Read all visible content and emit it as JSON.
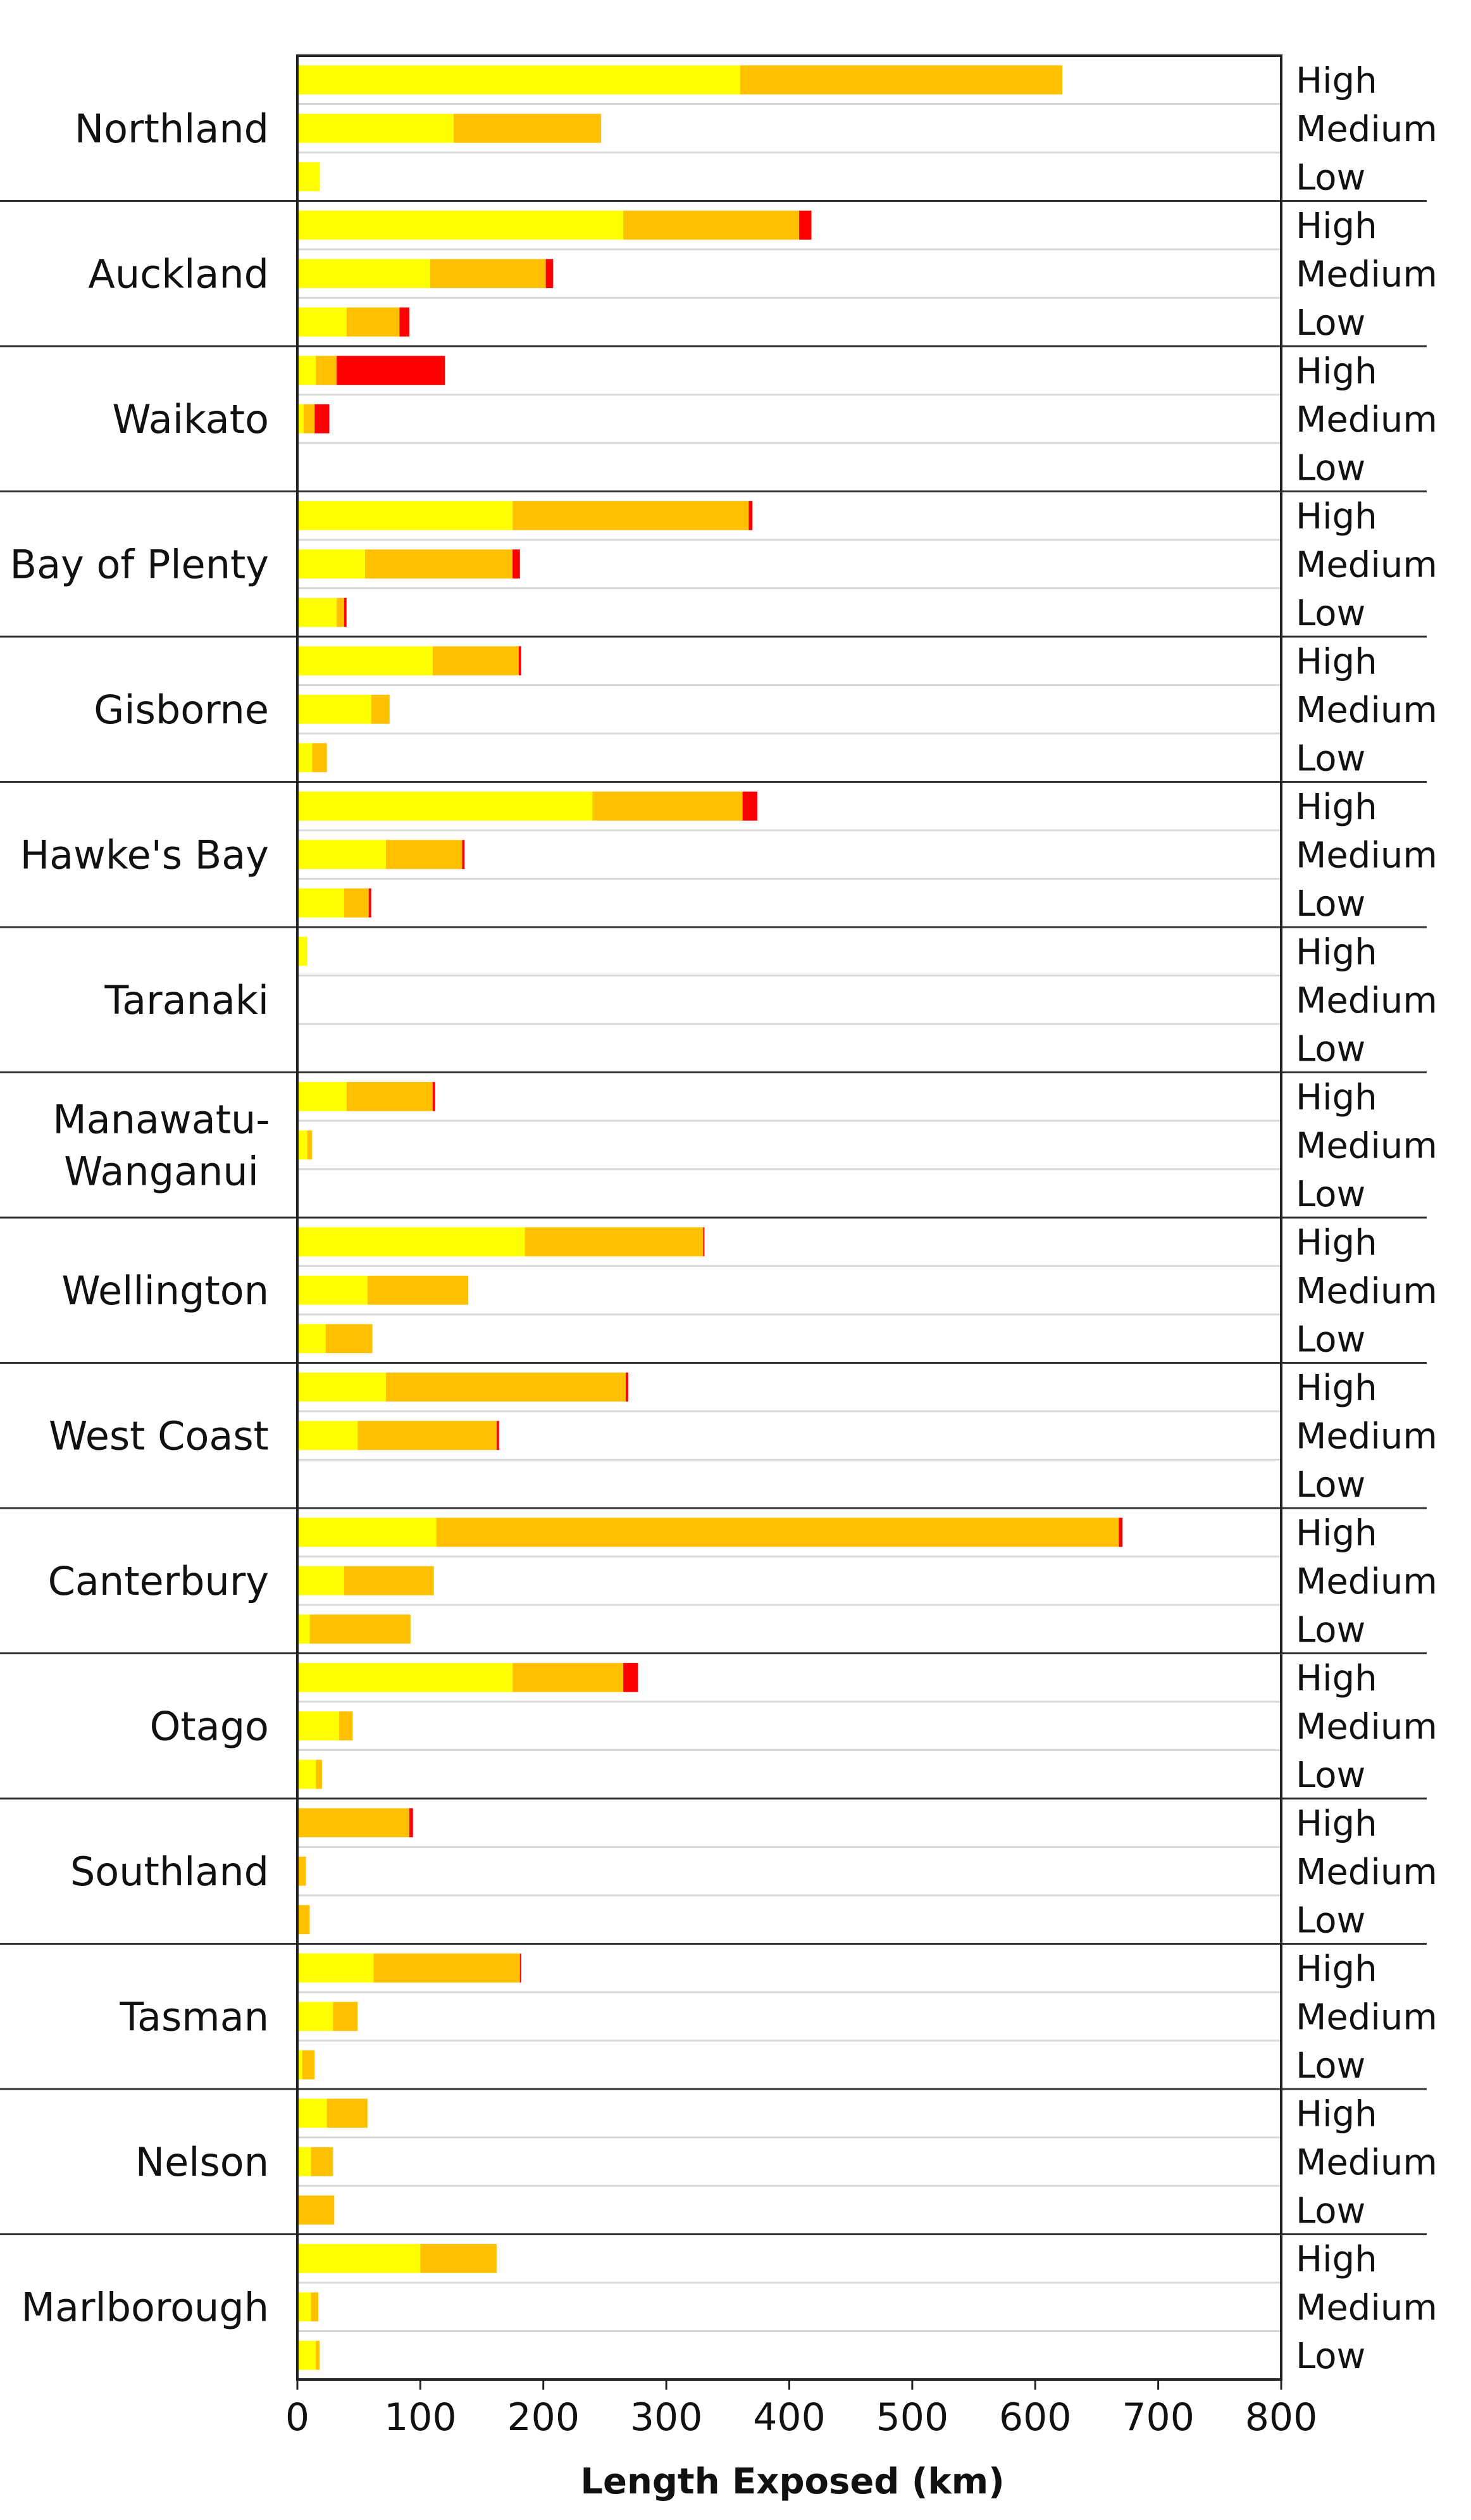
{
  "chart_data": {
    "type": "bar",
    "orientation": "horizontal",
    "stacked": true,
    "xlabel": "Length Exposed (km)",
    "ylabel": "",
    "xlim": [
      0,
      800
    ],
    "xticks": [
      "0",
      "100",
      "200",
      "300",
      "400",
      "500",
      "600",
      "700",
      "800"
    ],
    "grid": true,
    "legend": "none",
    "levels": [
      "High",
      "Medium",
      "Low"
    ],
    "segment_colors": [
      "#ffff00",
      "#ffc000",
      "#ff0000"
    ],
    "regions": [
      {
        "name": "Northland",
        "rows": [
          {
            "level": "High",
            "values": [
              360,
              262,
              0
            ]
          },
          {
            "level": "Medium",
            "values": [
              127,
              120,
              0
            ]
          },
          {
            "level": "Low",
            "values": [
              18,
              0,
              0
            ]
          }
        ]
      },
      {
        "name": "Auckland",
        "rows": [
          {
            "level": "High",
            "values": [
              265,
              143,
              10
            ]
          },
          {
            "level": "Medium",
            "values": [
              108,
              94,
              6
            ]
          },
          {
            "level": "Low",
            "values": [
              40,
              43,
              8
            ]
          }
        ]
      },
      {
        "name": "Waikato",
        "rows": [
          {
            "level": "High",
            "values": [
              15,
              17,
              88
            ]
          },
          {
            "level": "Medium",
            "values": [
              5,
              9,
              12
            ]
          },
          {
            "level": "Low",
            "values": [
              0,
              0,
              0
            ]
          }
        ]
      },
      {
        "name": "Bay of Plenty",
        "rows": [
          {
            "level": "High",
            "values": [
              175,
              192,
              3
            ]
          },
          {
            "level": "Medium",
            "values": [
              55,
              120,
              6
            ]
          },
          {
            "level": "Low",
            "values": [
              32,
              6,
              2
            ]
          }
        ]
      },
      {
        "name": "Gisborne",
        "rows": [
          {
            "level": "High",
            "values": [
              110,
              70,
              2
            ]
          },
          {
            "level": "Medium",
            "values": [
              60,
              15,
              0
            ]
          },
          {
            "level": "Low",
            "values": [
              12,
              12,
              0
            ]
          }
        ]
      },
      {
        "name": "Hawke's Bay",
        "rows": [
          {
            "level": "High",
            "values": [
              240,
              122,
              12
            ]
          },
          {
            "level": "Medium",
            "values": [
              72,
              62,
              2
            ]
          },
          {
            "level": "Low",
            "values": [
              38,
              20,
              2
            ]
          }
        ]
      },
      {
        "name": "Taranaki",
        "rows": [
          {
            "level": "High",
            "values": [
              8,
              0,
              0
            ]
          },
          {
            "level": "Medium",
            "values": [
              0,
              0,
              0
            ]
          },
          {
            "level": "Low",
            "values": [
              0,
              0,
              0
            ]
          }
        ]
      },
      {
        "name": "Manawatu-\nWanganui",
        "rows": [
          {
            "level": "High",
            "values": [
              40,
              70,
              2
            ]
          },
          {
            "level": "Medium",
            "values": [
              8,
              4,
              0
            ]
          },
          {
            "level": "Low",
            "values": [
              0,
              0,
              0
            ]
          }
        ]
      },
      {
        "name": "Wellington",
        "rows": [
          {
            "level": "High",
            "values": [
              185,
              145,
              1
            ]
          },
          {
            "level": "Medium",
            "values": [
              57,
              82,
              0
            ]
          },
          {
            "level": "Low",
            "values": [
              23,
              38,
              0
            ]
          }
        ]
      },
      {
        "name": "West Coast",
        "rows": [
          {
            "level": "High",
            "values": [
              72,
              195,
              2
            ]
          },
          {
            "level": "Medium",
            "values": [
              49,
              113,
              2
            ]
          },
          {
            "level": "Low",
            "values": [
              0,
              0,
              0
            ]
          }
        ]
      },
      {
        "name": "Canterbury",
        "rows": [
          {
            "level": "High",
            "values": [
              113,
              555,
              3
            ]
          },
          {
            "level": "Medium",
            "values": [
              38,
              73,
              0
            ]
          },
          {
            "level": "Low",
            "values": [
              10,
              82,
              0
            ]
          }
        ]
      },
      {
        "name": "Otago",
        "rows": [
          {
            "level": "High",
            "values": [
              175,
              90,
              12
            ]
          },
          {
            "level": "Medium",
            "values": [
              34,
              11,
              0
            ]
          },
          {
            "level": "Low",
            "values": [
              15,
              5,
              0
            ]
          }
        ]
      },
      {
        "name": "Southland",
        "rows": [
          {
            "level": "High",
            "values": [
              0,
              91,
              3
            ]
          },
          {
            "level": "Medium",
            "values": [
              0,
              7,
              0
            ]
          },
          {
            "level": "Low",
            "values": [
              0,
              10,
              0
            ]
          }
        ]
      },
      {
        "name": "Tasman",
        "rows": [
          {
            "level": "High",
            "values": [
              62,
              119,
              1
            ]
          },
          {
            "level": "Medium",
            "values": [
              29,
              20,
              0
            ]
          },
          {
            "level": "Low",
            "values": [
              4,
              10,
              0
            ]
          }
        ]
      },
      {
        "name": "Nelson",
        "rows": [
          {
            "level": "High",
            "values": [
              24,
              33,
              0
            ]
          },
          {
            "level": "Medium",
            "values": [
              11,
              18,
              0
            ]
          },
          {
            "level": "Low",
            "values": [
              0,
              30,
              0
            ]
          }
        ]
      },
      {
        "name": "Marlborough",
        "rows": [
          {
            "level": "High",
            "values": [
              100,
              62,
              0
            ]
          },
          {
            "level": "Medium",
            "values": [
              11,
              6,
              0
            ]
          },
          {
            "level": "Low",
            "values": [
              15,
              3,
              0
            ]
          }
        ]
      }
    ]
  }
}
